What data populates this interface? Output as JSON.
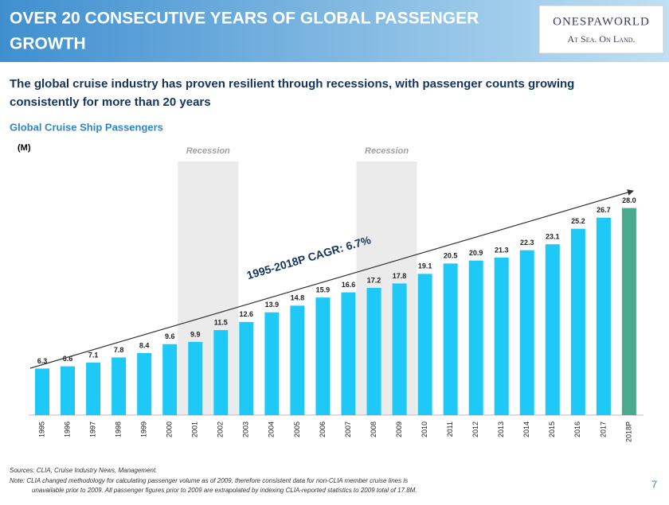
{
  "header": {
    "title_lines": [
      "OVER 20 CONSECUTIVE YEARS OF GLOBAL PASSENGER",
      "GROWTH"
    ],
    "logo": "ONESPAWORLD",
    "tagline": "At Sea. On Land."
  },
  "subtitle_lines": [
    "The global cruise industry has proven resilient through recessions, with passenger counts growing",
    "consistently for more than 20 years"
  ],
  "chart_data": {
    "type": "bar",
    "title": "Global Cruise Ship Passengers",
    "y_label": "(M)",
    "categories": [
      "1995",
      "1996",
      "1997",
      "1998",
      "1999",
      "2000",
      "2001",
      "2002",
      "2003",
      "2004",
      "2005",
      "2006",
      "2007",
      "2008",
      "2009",
      "2010",
      "2011",
      "2012",
      "2013",
      "2014",
      "2015",
      "2016",
      "2017",
      "2018P"
    ],
    "values": [
      6.3,
      6.6,
      7.1,
      7.8,
      8.4,
      9.6,
      9.9,
      11.5,
      12.6,
      13.9,
      14.8,
      15.9,
      16.6,
      17.2,
      17.8,
      19.1,
      20.5,
      20.9,
      21.3,
      22.3,
      23.1,
      25.2,
      26.7,
      28.0
    ],
    "value_labels": [
      "6.3",
      "6.6",
      "7.1",
      "7.8",
      "8.4",
      "9.6",
      "9.9",
      "11.5",
      "12.6",
      "13.9",
      "14.8",
      "15.9",
      "16.6",
      "17.2",
      "17.8",
      "19.1",
      "20.5",
      "20.9",
      "21.3",
      "22.3",
      "23.1",
      "25.2",
      "26.7",
      "28.0"
    ],
    "colors": [
      "#1ec8f7",
      "#1ec8f7",
      "#1ec8f7",
      "#1ec8f7",
      "#1ec8f7",
      "#1ec8f7",
      "#1ec8f7",
      "#1ec8f7",
      "#1ec8f7",
      "#1ec8f7",
      "#1ec8f7",
      "#1ec8f7",
      "#1ec8f7",
      "#1ec8f7",
      "#1ec8f7",
      "#1ec8f7",
      "#1ec8f7",
      "#1ec8f7",
      "#1ec8f7",
      "#1ec8f7",
      "#1ec8f7",
      "#1ec8f7",
      "#1ec8f7",
      "#4caa8c"
    ],
    "ylim": [
      0,
      30
    ],
    "shaded": [
      {
        "label": "Recession",
        "start": "2001",
        "end": "2002"
      },
      {
        "label": "Recession",
        "start": "2008",
        "end": "2009"
      }
    ],
    "trend_label": "1995-2018P CAGR: 6.7%"
  },
  "footer": {
    "sources": "Sources: CLIA, Cruise Industry News, Management.",
    "note_lines": [
      "Note: CLIA changed methodology for calculating passenger volume as of 2009, therefore consistent data for non-CLIA member cruise lines is",
      "unavailable prior to 2009. All passenger figures prior to 2009 are extrapolated by indexing CLIA-reported statistics to 2009 total of 17.8M."
    ],
    "page": "7"
  }
}
